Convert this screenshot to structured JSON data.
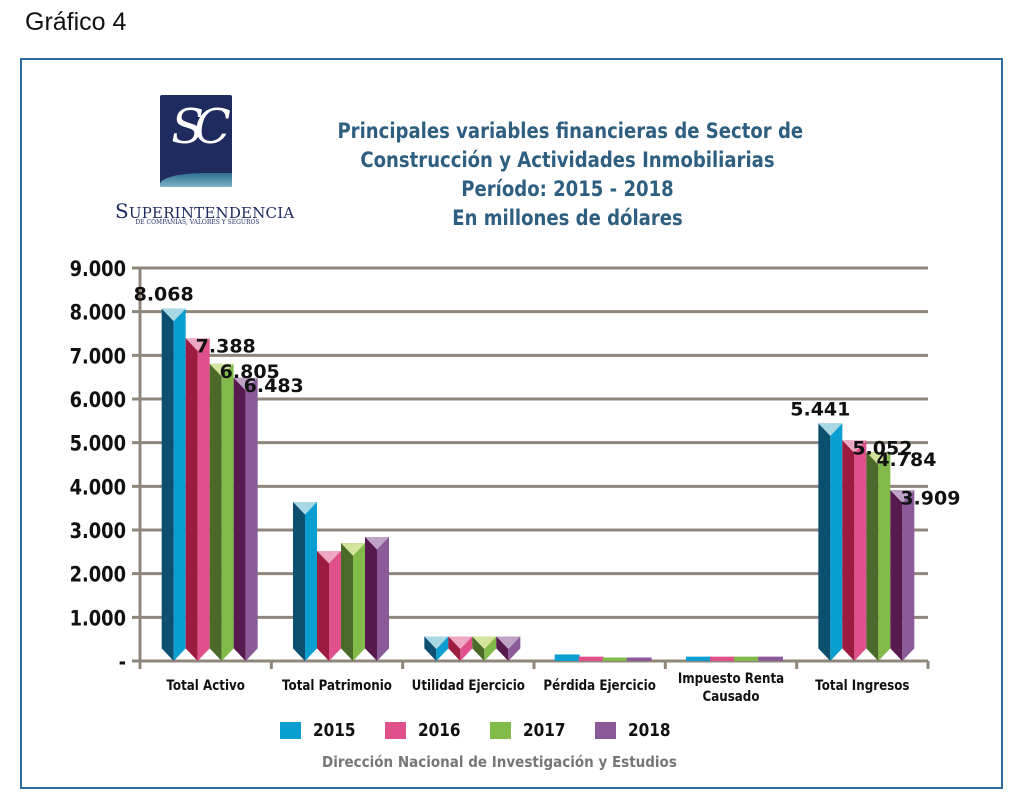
{
  "figure_label": "Gráfico 4",
  "logo": {
    "monogram": "SC",
    "name": "Superintendencia",
    "name_first": "S",
    "name_rest": "UPERINTENDENCIA",
    "subtitle": "DE COMPAÑÍAS, VALORES Y SEGUROS",
    "colors": {
      "navy": "#1f2a5f"
    }
  },
  "source": "Dirección Nacional de Investigación y Estudios",
  "chart_data": {
    "type": "bar",
    "title_lines": [
      "Principales variables financieras de Sector de",
      "Construcción y Actividades Inmobiliarias",
      "Período: 2015 - 2018",
      "En millones de dólares"
    ],
    "xlabel": "",
    "ylabel": "",
    "ylim": [
      0,
      9000
    ],
    "yticks": [
      0,
      1000,
      2000,
      3000,
      4000,
      5000,
      6000,
      7000,
      8000,
      9000
    ],
    "ytick_labels": [
      "-",
      "1.000",
      "2.000",
      "3.000",
      "4.000",
      "5.000",
      "6.000",
      "7.000",
      "8.000",
      "9.000"
    ],
    "grid": true,
    "legend_position": "bottom",
    "categories": [
      "Total Activo",
      "Total Patrimonio",
      "Utilidad Ejercicio",
      "Pérdida Ejercicio",
      "Impuesto Renta Causado",
      "Total Ingresos"
    ],
    "category_label_lines": [
      [
        "Total Activo"
      ],
      [
        "Total Patrimonio"
      ],
      [
        "Utilidad Ejercicio"
      ],
      [
        "Pérdida Ejercicio"
      ],
      [
        "Impuesto Renta",
        "Causado"
      ],
      [
        "Total Ingresos"
      ]
    ],
    "series": [
      {
        "name": "2015",
        "color": "#0b9fd1",
        "dark": "#0d4f6e",
        "cap": "#a7d8e4",
        "values": [
          8068,
          3640,
          560,
          150,
          100,
          5441
        ]
      },
      {
        "name": "2016",
        "color": "#e0508a",
        "dark": "#9c1c40",
        "cap": "#efa8c3",
        "values": [
          7388,
          2520,
          560,
          100,
          100,
          5052
        ]
      },
      {
        "name": "2017",
        "color": "#82bb49",
        "dark": "#4b6a2a",
        "cap": "#d3e59c",
        "values": [
          6805,
          2700,
          560,
          80,
          100,
          4784
        ]
      },
      {
        "name": "2018",
        "color": "#8a5a99",
        "dark": "#561a4f",
        "cap": "#bfa3c7",
        "values": [
          6483,
          2840,
          560,
          80,
          100,
          3909
        ]
      }
    ],
    "data_labels": {
      "Total Activo": [
        "8.068",
        "7.388",
        "6.805",
        "6.483"
      ],
      "Total Ingresos": [
        "5.441",
        "5.052",
        "4.784",
        "3.909"
      ]
    }
  }
}
